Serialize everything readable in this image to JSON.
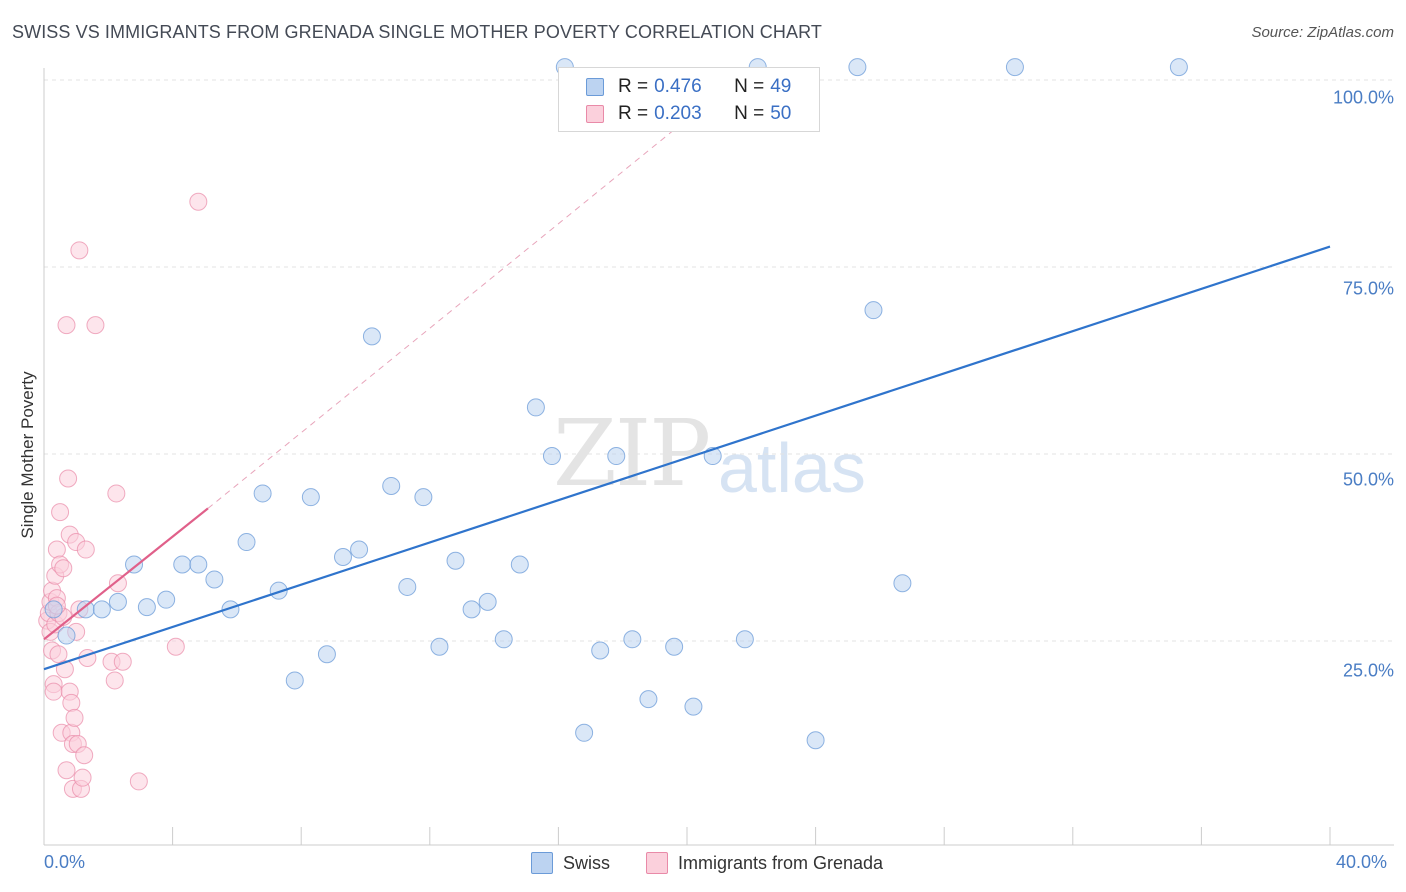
{
  "chart_data": {
    "type": "scatter",
    "title": "SWISS VS IMMIGRANTS FROM GRENADA SINGLE MOTHER POVERTY CORRELATION CHART",
    "source": "Source: ZipAtlas.com",
    "xlabel": "",
    "ylabel": "Single Mother Poverty",
    "xlim": [
      0,
      40
    ],
    "ylim": [
      0,
      100
    ],
    "x_tick_labels": [
      "0.0%",
      "40.0%"
    ],
    "y_tick_labels": [
      "100.0%",
      "75.0%",
      "50.0%",
      "25.0%"
    ],
    "y_tick_values": [
      100,
      75,
      50,
      25
    ],
    "watermark": [
      "ZIP",
      "atlas"
    ],
    "legend": {
      "rows": [
        {
          "r_label": "R =",
          "r_value": "0.476",
          "n_label": "N =",
          "n_value": "49"
        },
        {
          "r_label": "R =",
          "r_value": "0.203",
          "n_label": "N =",
          "n_value": "50"
        }
      ]
    },
    "series": [
      {
        "name": "Swiss",
        "color": "#9bbde6",
        "line_color": "#2f74cc",
        "trend": {
          "x0": 0,
          "y0": 23.5,
          "x1": 40,
          "y1": 80
        },
        "points": [
          [
            0.3,
            31.5
          ],
          [
            0.7,
            28
          ],
          [
            1.3,
            31.5
          ],
          [
            1.8,
            31.5
          ],
          [
            2.3,
            32.5
          ],
          [
            2.8,
            37.5
          ],
          [
            3.2,
            31.8
          ],
          [
            3.8,
            32.8
          ],
          [
            4.3,
            37.5
          ],
          [
            4.8,
            37.5
          ],
          [
            5.3,
            35.5
          ],
          [
            5.8,
            31.5
          ],
          [
            6.3,
            40.5
          ],
          [
            6.8,
            47
          ],
          [
            7.3,
            34
          ],
          [
            7.8,
            22
          ],
          [
            8.3,
            46.5
          ],
          [
            8.8,
            25.5
          ],
          [
            9.3,
            38.5
          ],
          [
            9.8,
            39.5
          ],
          [
            10.2,
            68
          ],
          [
            10.8,
            48
          ],
          [
            11.3,
            34.5
          ],
          [
            11.8,
            46.5
          ],
          [
            12.3,
            26.5
          ],
          [
            12.8,
            38
          ],
          [
            13.3,
            31.5
          ],
          [
            13.8,
            32.5
          ],
          [
            14.3,
            27.5
          ],
          [
            14.8,
            37.5
          ],
          [
            15.3,
            58.5
          ],
          [
            15.8,
            52
          ],
          [
            16.2,
            104
          ],
          [
            16.8,
            15
          ],
          [
            17.3,
            26
          ],
          [
            17.8,
            52
          ],
          [
            18.3,
            27.5
          ],
          [
            18.8,
            19.5
          ],
          [
            19.6,
            26.5
          ],
          [
            20.2,
            18.5
          ],
          [
            20.8,
            52
          ],
          [
            21.8,
            27.5
          ],
          [
            22.2,
            104
          ],
          [
            24,
            14
          ],
          [
            25.3,
            104
          ],
          [
            25.8,
            71.5
          ],
          [
            26.7,
            35
          ],
          [
            30.2,
            104
          ],
          [
            35.3,
            104
          ]
        ]
      },
      {
        "name": "Immigrants from Grenada",
        "color": "#f0a3bb",
        "line_color": "#e0608a",
        "trend": {
          "x0": 0,
          "y0": 27.5,
          "x1": 5.1,
          "y1": 45
        },
        "trend_ext": {
          "x0": 5.1,
          "y0": 45,
          "x1": 22,
          "y1": 104
        },
        "points": [
          [
            0.1,
            30
          ],
          [
            0.15,
            31
          ],
          [
            0.2,
            32.5
          ],
          [
            0.2,
            28.5
          ],
          [
            0.25,
            34
          ],
          [
            0.25,
            26
          ],
          [
            0.3,
            21.5
          ],
          [
            0.3,
            20.5
          ],
          [
            0.35,
            29.5
          ],
          [
            0.35,
            36
          ],
          [
            0.4,
            39.5
          ],
          [
            0.4,
            33
          ],
          [
            0.45,
            31
          ],
          [
            0.45,
            25.5
          ],
          [
            0.5,
            44.5
          ],
          [
            0.5,
            37.5
          ],
          [
            0.55,
            15
          ],
          [
            0.6,
            37
          ],
          [
            0.6,
            30.5
          ],
          [
            0.65,
            23.5
          ],
          [
            0.7,
            10
          ],
          [
            0.7,
            69.5
          ],
          [
            0.75,
            49
          ],
          [
            0.8,
            41.5
          ],
          [
            0.8,
            20.5
          ],
          [
            0.85,
            19
          ],
          [
            0.85,
            15
          ],
          [
            0.9,
            13.5
          ],
          [
            0.9,
            7.5
          ],
          [
            0.95,
            17
          ],
          [
            1.0,
            40.5
          ],
          [
            1.0,
            28.5
          ],
          [
            1.05,
            13.5
          ],
          [
            1.1,
            31.5
          ],
          [
            1.1,
            79.5
          ],
          [
            1.15,
            7.5
          ],
          [
            1.2,
            9
          ],
          [
            1.25,
            12
          ],
          [
            1.3,
            39.5
          ],
          [
            1.35,
            25
          ],
          [
            1.6,
            69.5
          ],
          [
            2.1,
            24.5
          ],
          [
            2.2,
            22
          ],
          [
            2.25,
            47
          ],
          [
            2.3,
            35
          ],
          [
            2.45,
            24.5
          ],
          [
            2.95,
            8.5
          ],
          [
            4.1,
            26.5
          ],
          [
            4.8,
            86
          ],
          [
            0.4,
            32
          ]
        ]
      }
    ]
  },
  "bottom_legend": {
    "swiss": "Swiss",
    "grenada": "Immigrants from Grenada"
  },
  "colors": {
    "swiss_fill": "#bcd3f1",
    "swiss_edge": "#6b9bd8",
    "grenada_fill": "#fbd0dc",
    "grenada_edge": "#e98aa8"
  }
}
